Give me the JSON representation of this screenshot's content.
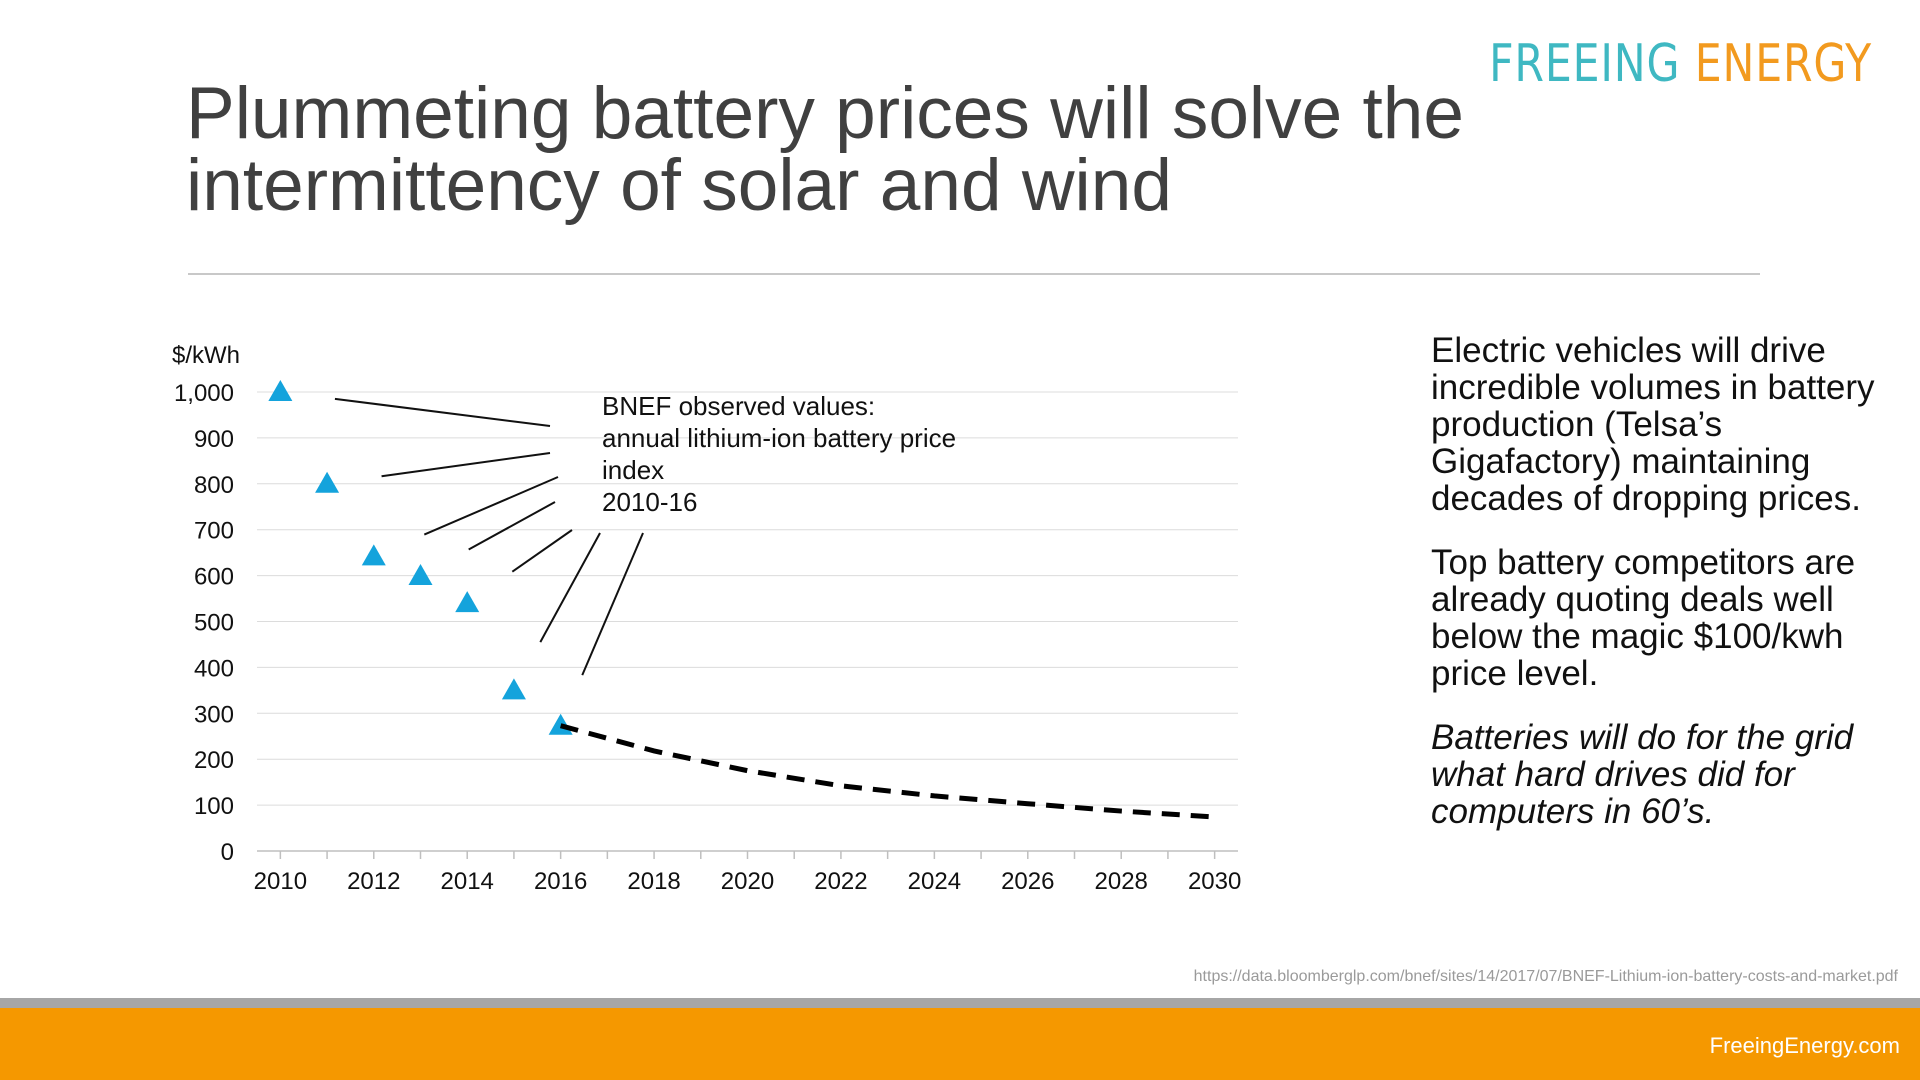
{
  "logo": {
    "part1": "FREEING",
    "part2": "ENERGY"
  },
  "title": "Plummeting battery prices will solve the intermittency of solar and wind",
  "side": {
    "p1": "Electric vehicles will drive incredible volumes in battery production (Telsa’s Gigafactory) maintaining decades of dropping prices.",
    "p2": "Top battery competitors are already quoting deals well below the magic $100/kwh price level.",
    "p3": "Batteries will do for the grid what hard drives did for computers in 60’s."
  },
  "source": "https://data.bloomberglp.com/bnef/sites/14/2017/07/BNEF-Lithium-ion-battery-costs-and-market.pdf",
  "footer": "FreeingEnergy.com",
  "colors": {
    "marker": "#14a3dc",
    "orange": "#f59800",
    "teal": "#3fb8c2"
  },
  "chart_data": {
    "type": "scatter",
    "ylabel": "$/kWh",
    "ylim": [
      0,
      1000
    ],
    "xlim": [
      2009.5,
      2030.5
    ],
    "yticks": [
      "0",
      "100",
      "200",
      "300",
      "400",
      "500",
      "600",
      "700",
      "800",
      "900",
      "1,000"
    ],
    "xticks": [
      "2010",
      "2012",
      "2014",
      "2016",
      "2018",
      "2020",
      "2022",
      "2024",
      "2026",
      "2028",
      "2030"
    ],
    "grid": true,
    "annotation": [
      "BNEF observed values:",
      "annual lithium-ion battery price",
      "index",
      "2010-16"
    ],
    "series": [
      {
        "marker": "triangle",
        "x": [
          2010,
          2011,
          2012,
          2013,
          2014,
          2015,
          2016
        ],
        "y": [
          1000,
          800,
          642,
          599,
          540,
          350,
          273
        ]
      },
      {
        "line": "dashed",
        "x": [
          2016,
          2018,
          2020,
          2022,
          2024,
          2026,
          2028,
          2030
        ],
        "y": [
          273,
          218,
          175,
          142,
          120,
          103,
          87,
          74
        ]
      }
    ]
  }
}
